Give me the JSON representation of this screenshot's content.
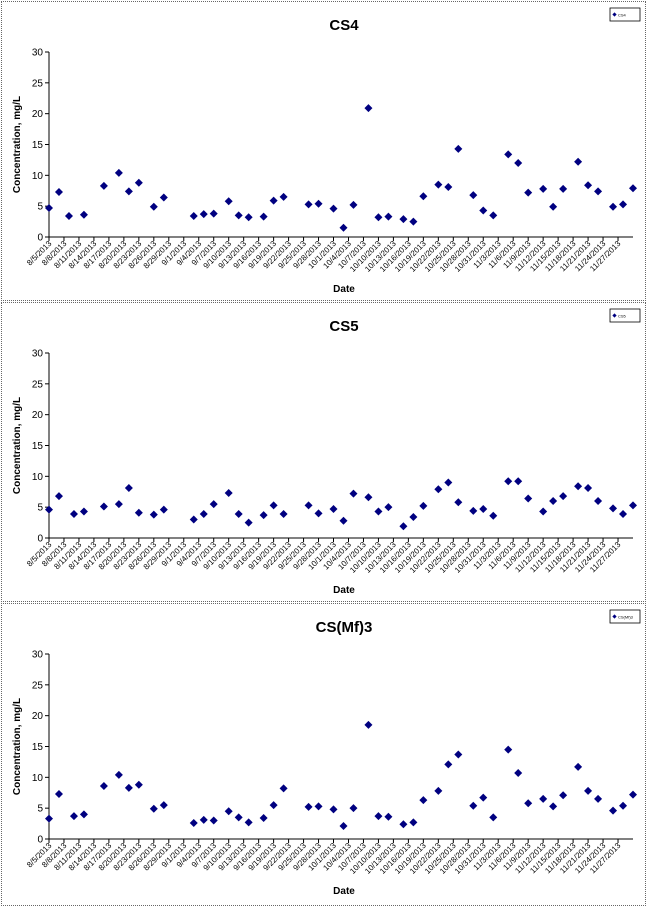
{
  "dates": [
    "8/5/2013",
    "8/8/2013",
    "8/11/2013",
    "8/14/2013",
    "8/17/2013",
    "8/20/2013",
    "8/23/2013",
    "8/26/2013",
    "8/29/2013",
    "9/1/2013",
    "9/4/2013",
    "9/7/2013",
    "9/10/2013",
    "9/13/2013",
    "9/16/2013",
    "9/19/2013",
    "9/22/2013",
    "9/25/2013",
    "9/28/2013",
    "10/1/2013",
    "10/4/2013",
    "10/7/2013",
    "10/10/2013",
    "10/13/2013",
    "10/16/2013",
    "10/19/2013",
    "10/22/2013",
    "10/25/2013",
    "10/28/2013",
    "10/31/2013",
    "11/3/2013",
    "11/6/2013",
    "11/9/2013",
    "11/12/2013",
    "11/15/2013",
    "11/18/2013",
    "11/21/2013",
    "11/24/2013",
    "11/27/2013"
  ],
  "colors": {
    "marker": "#000080",
    "border": "#666666",
    "text": "#000000"
  },
  "chart_data": [
    {
      "type": "scatter",
      "title": "CS4",
      "xlabel": "Date",
      "ylabel": "Concentration, mg/L",
      "ylim": [
        0,
        30
      ],
      "yticks": [
        0,
        5,
        10,
        15,
        20,
        25,
        30
      ],
      "legend": {
        "position": "top-right",
        "label": "CS4"
      },
      "series": [
        {
          "points": [
            {
              "x": "8/5/2013",
              "y": 4.7
            },
            {
              "x": "8/7/2013",
              "y": 7.3
            },
            {
              "x": "8/9/2013",
              "y": 3.4
            },
            {
              "x": "8/12/2013",
              "y": 3.6
            },
            {
              "x": "8/16/2013",
              "y": 8.3
            },
            {
              "x": "8/19/2013",
              "y": 10.4
            },
            {
              "x": "8/21/2013",
              "y": 7.4
            },
            {
              "x": "8/23/2013",
              "y": 8.8
            },
            {
              "x": "8/26/2013",
              "y": 4.9
            },
            {
              "x": "8/28/2013",
              "y": 6.4
            },
            {
              "x": "9/3/2013",
              "y": 3.4
            },
            {
              "x": "9/5/2013",
              "y": 3.7
            },
            {
              "x": "9/7/2013",
              "y": 3.8
            },
            {
              "x": "9/10/2013",
              "y": 5.8
            },
            {
              "x": "9/12/2013",
              "y": 3.5
            },
            {
              "x": "9/14/2013",
              "y": 3.2
            },
            {
              "x": "9/17/2013",
              "y": 3.3
            },
            {
              "x": "9/19/2013",
              "y": 5.9
            },
            {
              "x": "9/21/2013",
              "y": 6.5
            },
            {
              "x": "9/26/2013",
              "y": 5.3
            },
            {
              "x": "9/28/2013",
              "y": 5.4
            },
            {
              "x": "10/1/2013",
              "y": 4.6
            },
            {
              "x": "10/3/2013",
              "y": 1.5
            },
            {
              "x": "10/5/2013",
              "y": 5.2
            },
            {
              "x": "10/8/2013",
              "y": 20.9
            },
            {
              "x": "10/10/2013",
              "y": 3.2
            },
            {
              "x": "10/12/2013",
              "y": 3.3
            },
            {
              "x": "10/15/2013",
              "y": 2.9
            },
            {
              "x": "10/17/2013",
              "y": 2.5
            },
            {
              "x": "10/19/2013",
              "y": 6.6
            },
            {
              "x": "10/22/2013",
              "y": 8.5
            },
            {
              "x": "10/24/2013",
              "y": 8.1
            },
            {
              "x": "10/26/2013",
              "y": 14.3
            },
            {
              "x": "10/29/2013",
              "y": 6.8
            },
            {
              "x": "10/31/2013",
              "y": 4.3
            },
            {
              "x": "11/2/2013",
              "y": 3.5
            },
            {
              "x": "11/5/2013",
              "y": 13.4
            },
            {
              "x": "11/7/2013",
              "y": 12.0
            },
            {
              "x": "11/9/2013",
              "y": 7.2
            },
            {
              "x": "11/12/2013",
              "y": 7.8
            },
            {
              "x": "11/14/2013",
              "y": 4.9
            },
            {
              "x": "11/16/2013",
              "y": 7.8
            },
            {
              "x": "11/19/2013",
              "y": 12.2
            },
            {
              "x": "11/21/2013",
              "y": 8.4
            },
            {
              "x": "11/23/2013",
              "y": 7.4
            },
            {
              "x": "11/26/2013",
              "y": 4.9
            },
            {
              "x": "11/28/2013",
              "y": 5.3
            },
            {
              "x": "11/30/2013",
              "y": 7.9
            }
          ]
        }
      ]
    },
    {
      "type": "scatter",
      "title": "CS5",
      "xlabel": "Date",
      "ylabel": "Concentration, mg/L",
      "ylim": [
        0,
        30
      ],
      "yticks": [
        0,
        5,
        10,
        15,
        20,
        25,
        30
      ],
      "legend": {
        "position": "top-right",
        "label": "CS5"
      },
      "series": [
        {
          "points": [
            {
              "x": "8/5/2013",
              "y": 4.6
            },
            {
              "x": "8/7/2013",
              "y": 6.8
            },
            {
              "x": "8/10/2013",
              "y": 3.9
            },
            {
              "x": "8/12/2013",
              "y": 4.3
            },
            {
              "x": "8/16/2013",
              "y": 5.1
            },
            {
              "x": "8/19/2013",
              "y": 5.5
            },
            {
              "x": "8/21/2013",
              "y": 8.1
            },
            {
              "x": "8/23/2013",
              "y": 4.1
            },
            {
              "x": "8/26/2013",
              "y": 3.8
            },
            {
              "x": "8/28/2013",
              "y": 4.6
            },
            {
              "x": "9/3/2013",
              "y": 3.0
            },
            {
              "x": "9/5/2013",
              "y": 3.9
            },
            {
              "x": "9/7/2013",
              "y": 5.5
            },
            {
              "x": "9/10/2013",
              "y": 7.3
            },
            {
              "x": "9/12/2013",
              "y": 3.9
            },
            {
              "x": "9/14/2013",
              "y": 2.5
            },
            {
              "x": "9/17/2013",
              "y": 3.7
            },
            {
              "x": "9/19/2013",
              "y": 5.3
            },
            {
              "x": "9/21/2013",
              "y": 3.9
            },
            {
              "x": "9/26/2013",
              "y": 5.3
            },
            {
              "x": "9/28/2013",
              "y": 4.0
            },
            {
              "x": "10/1/2013",
              "y": 4.7
            },
            {
              "x": "10/3/2013",
              "y": 2.8
            },
            {
              "x": "10/5/2013",
              "y": 7.2
            },
            {
              "x": "10/8/2013",
              "y": 6.6
            },
            {
              "x": "10/10/2013",
              "y": 4.3
            },
            {
              "x": "10/12/2013",
              "y": 5.0
            },
            {
              "x": "10/15/2013",
              "y": 1.9
            },
            {
              "x": "10/17/2013",
              "y": 3.4
            },
            {
              "x": "10/19/2013",
              "y": 5.2
            },
            {
              "x": "10/22/2013",
              "y": 7.9
            },
            {
              "x": "10/24/2013",
              "y": 9.0
            },
            {
              "x": "10/26/2013",
              "y": 5.8
            },
            {
              "x": "10/29/2013",
              "y": 4.4
            },
            {
              "x": "10/31/2013",
              "y": 4.7
            },
            {
              "x": "11/2/2013",
              "y": 3.6
            },
            {
              "x": "11/5/2013",
              "y": 9.2
            },
            {
              "x": "11/7/2013",
              "y": 9.2
            },
            {
              "x": "11/9/2013",
              "y": 6.4
            },
            {
              "x": "11/12/2013",
              "y": 4.3
            },
            {
              "x": "11/14/2013",
              "y": 6.0
            },
            {
              "x": "11/16/2013",
              "y": 6.8
            },
            {
              "x": "11/19/2013",
              "y": 8.4
            },
            {
              "x": "11/21/2013",
              "y": 8.1
            },
            {
              "x": "11/23/2013",
              "y": 6.0
            },
            {
              "x": "11/26/2013",
              "y": 4.8
            },
            {
              "x": "11/28/2013",
              "y": 3.9
            },
            {
              "x": "11/30/2013",
              "y": 5.3
            }
          ]
        }
      ]
    },
    {
      "type": "scatter",
      "title": "CS(Mf)3",
      "xlabel": "Date",
      "ylabel": "Concentration, mg/L",
      "ylim": [
        0,
        30
      ],
      "yticks": [
        0,
        5,
        10,
        15,
        20,
        25,
        30
      ],
      "legend": {
        "position": "top-right",
        "label": "CS(Mf)3"
      },
      "series": [
        {
          "points": [
            {
              "x": "8/5/2013",
              "y": 3.3
            },
            {
              "x": "8/7/2013",
              "y": 7.3
            },
            {
              "x": "8/10/2013",
              "y": 3.7
            },
            {
              "x": "8/12/2013",
              "y": 4.0
            },
            {
              "x": "8/16/2013",
              "y": 8.6
            },
            {
              "x": "8/19/2013",
              "y": 10.4
            },
            {
              "x": "8/21/2013",
              "y": 8.3
            },
            {
              "x": "8/23/2013",
              "y": 8.8
            },
            {
              "x": "8/26/2013",
              "y": 4.9
            },
            {
              "x": "8/28/2013",
              "y": 5.5
            },
            {
              "x": "9/3/2013",
              "y": 2.6
            },
            {
              "x": "9/5/2013",
              "y": 3.1
            },
            {
              "x": "9/7/2013",
              "y": 3.0
            },
            {
              "x": "9/10/2013",
              "y": 4.5
            },
            {
              "x": "9/12/2013",
              "y": 3.5
            },
            {
              "x": "9/14/2013",
              "y": 2.7
            },
            {
              "x": "9/17/2013",
              "y": 3.4
            },
            {
              "x": "9/19/2013",
              "y": 5.5
            },
            {
              "x": "9/21/2013",
              "y": 8.2
            },
            {
              "x": "9/26/2013",
              "y": 5.2
            },
            {
              "x": "9/28/2013",
              "y": 5.3
            },
            {
              "x": "10/1/2013",
              "y": 4.8
            },
            {
              "x": "10/3/2013",
              "y": 2.1
            },
            {
              "x": "10/5/2013",
              "y": 5.0
            },
            {
              "x": "10/8/2013",
              "y": 18.5
            },
            {
              "x": "10/10/2013",
              "y": 3.7
            },
            {
              "x": "10/12/2013",
              "y": 3.6
            },
            {
              "x": "10/15/2013",
              "y": 2.4
            },
            {
              "x": "10/17/2013",
              "y": 2.7
            },
            {
              "x": "10/19/2013",
              "y": 6.3
            },
            {
              "x": "10/22/2013",
              "y": 7.8
            },
            {
              "x": "10/24/2013",
              "y": 12.1
            },
            {
              "x": "10/26/2013",
              "y": 13.7
            },
            {
              "x": "10/29/2013",
              "y": 5.4
            },
            {
              "x": "10/31/2013",
              "y": 6.7
            },
            {
              "x": "11/2/2013",
              "y": 3.5
            },
            {
              "x": "11/5/2013",
              "y": 14.5
            },
            {
              "x": "11/7/2013",
              "y": 10.7
            },
            {
              "x": "11/9/2013",
              "y": 5.8
            },
            {
              "x": "11/12/2013",
              "y": 6.5
            },
            {
              "x": "11/14/2013",
              "y": 5.3
            },
            {
              "x": "11/16/2013",
              "y": 7.1
            },
            {
              "x": "11/19/2013",
              "y": 11.7
            },
            {
              "x": "11/21/2013",
              "y": 7.8
            },
            {
              "x": "11/23/2013",
              "y": 6.5
            },
            {
              "x": "11/26/2013",
              "y": 4.6
            },
            {
              "x": "11/28/2013",
              "y": 5.4
            },
            {
              "x": "11/30/2013",
              "y": 7.2
            }
          ]
        }
      ]
    }
  ]
}
